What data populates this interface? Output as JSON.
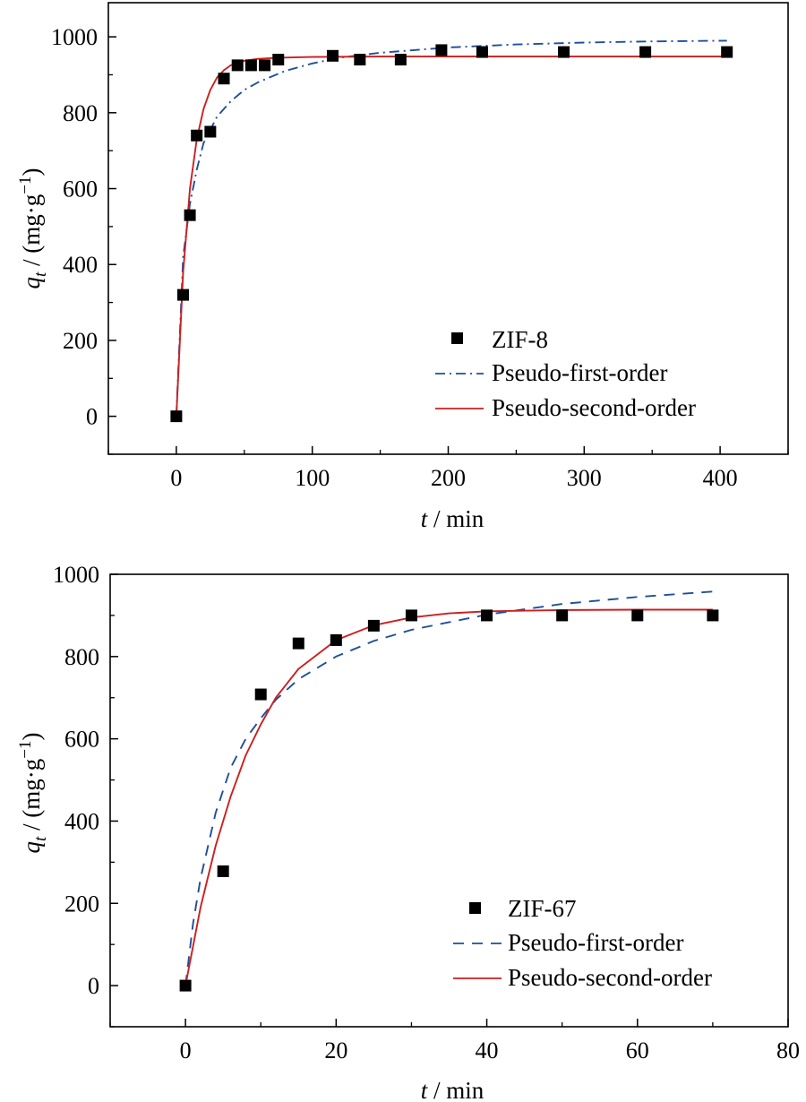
{
  "chart_data": [
    {
      "type": "scatter",
      "title": "",
      "xlabel_var": "t",
      "xlabel_unit": " / min",
      "ylabel_var": "q",
      "ylabel_sub": "t",
      "ylabel_unit": " / (mg·g",
      "ylabel_sup": "−1",
      "ylabel_close": ")",
      "xlim": [
        -50,
        450
      ],
      "ylim": [
        -100,
        1090
      ],
      "xticks": [
        0,
        100,
        200,
        300,
        400
      ],
      "yticks": [
        0,
        200,
        400,
        600,
        800,
        1000
      ],
      "grid": false,
      "legend_position": "bottom-right",
      "series": [
        {
          "name": "ZIF-8",
          "kind": "markers",
          "marker": "square",
          "color": "#000000",
          "x": [
            0,
            5,
            10,
            15,
            25,
            35,
            45,
            55,
            65,
            75,
            115,
            135,
            165,
            195,
            225,
            285,
            345,
            405
          ],
          "y": [
            0,
            320,
            530,
            740,
            750,
            890,
            925,
            925,
            925,
            940,
            950,
            940,
            940,
            965,
            960,
            960,
            960,
            960
          ]
        },
        {
          "name": "Pseudo-first-order",
          "kind": "line",
          "style": "dashdot",
          "color": "#1f4e9c",
          "x": [
            0,
            5,
            10,
            15,
            20,
            30,
            40,
            50,
            60,
            80,
            100,
            120,
            150,
            200,
            250,
            300,
            350,
            405
          ],
          "y": [
            0,
            420,
            560,
            650,
            720,
            790,
            830,
            860,
            880,
            910,
            930,
            945,
            958,
            972,
            980,
            985,
            988,
            990
          ]
        },
        {
          "name": "Pseudo-second-order",
          "kind": "line",
          "style": "solid",
          "color": "#cc1f1f",
          "x": [
            0,
            5,
            10,
            15,
            20,
            25,
            30,
            35,
            40,
            50,
            60,
            75,
            100,
            150,
            200,
            300,
            405
          ],
          "y": [
            0,
            380,
            600,
            730,
            810,
            860,
            893,
            912,
            925,
            937,
            942,
            945,
            947,
            948,
            948,
            948,
            948
          ]
        }
      ]
    },
    {
      "type": "scatter",
      "title": "",
      "xlabel_var": "t",
      "xlabel_unit": " / min",
      "ylabel_var": "q",
      "ylabel_sub": "t",
      "ylabel_unit": " / (mg·g",
      "ylabel_sup": "−1",
      "ylabel_close": ")",
      "xlim": [
        -10,
        80
      ],
      "ylim": [
        -100,
        1000
      ],
      "xticks": [
        0,
        20,
        40,
        60,
        80
      ],
      "yticks": [
        0,
        200,
        400,
        600,
        800,
        1000
      ],
      "grid": false,
      "legend_position": "bottom-right",
      "series": [
        {
          "name": "ZIF-67",
          "kind": "markers",
          "marker": "square",
          "color": "#000000",
          "x": [
            0,
            5,
            10,
            15,
            20,
            25,
            30,
            40,
            50,
            60,
            70
          ],
          "y": [
            0,
            278,
            708,
            832,
            840,
            875,
            900,
            900,
            900,
            900,
            900
          ]
        },
        {
          "name": "Pseudo-first-order",
          "kind": "line",
          "style": "dashed",
          "color": "#1f4e9c",
          "x": [
            0,
            1,
            2,
            4,
            6,
            8,
            10,
            12,
            15,
            20,
            25,
            30,
            40,
            50,
            60,
            70
          ],
          "y": [
            0,
            150,
            260,
            420,
            530,
            600,
            650,
            695,
            745,
            800,
            838,
            865,
            902,
            928,
            945,
            958
          ]
        },
        {
          "name": "Pseudo-second-order",
          "kind": "line",
          "style": "solid",
          "color": "#cc1f1f",
          "x": [
            0,
            2,
            4,
            6,
            8,
            10,
            12,
            15,
            20,
            25,
            30,
            35,
            40,
            50,
            60,
            70
          ],
          "y": [
            0,
            190,
            340,
            460,
            560,
            635,
            700,
            770,
            840,
            876,
            895,
            905,
            910,
            913,
            914,
            914
          ]
        }
      ]
    }
  ]
}
